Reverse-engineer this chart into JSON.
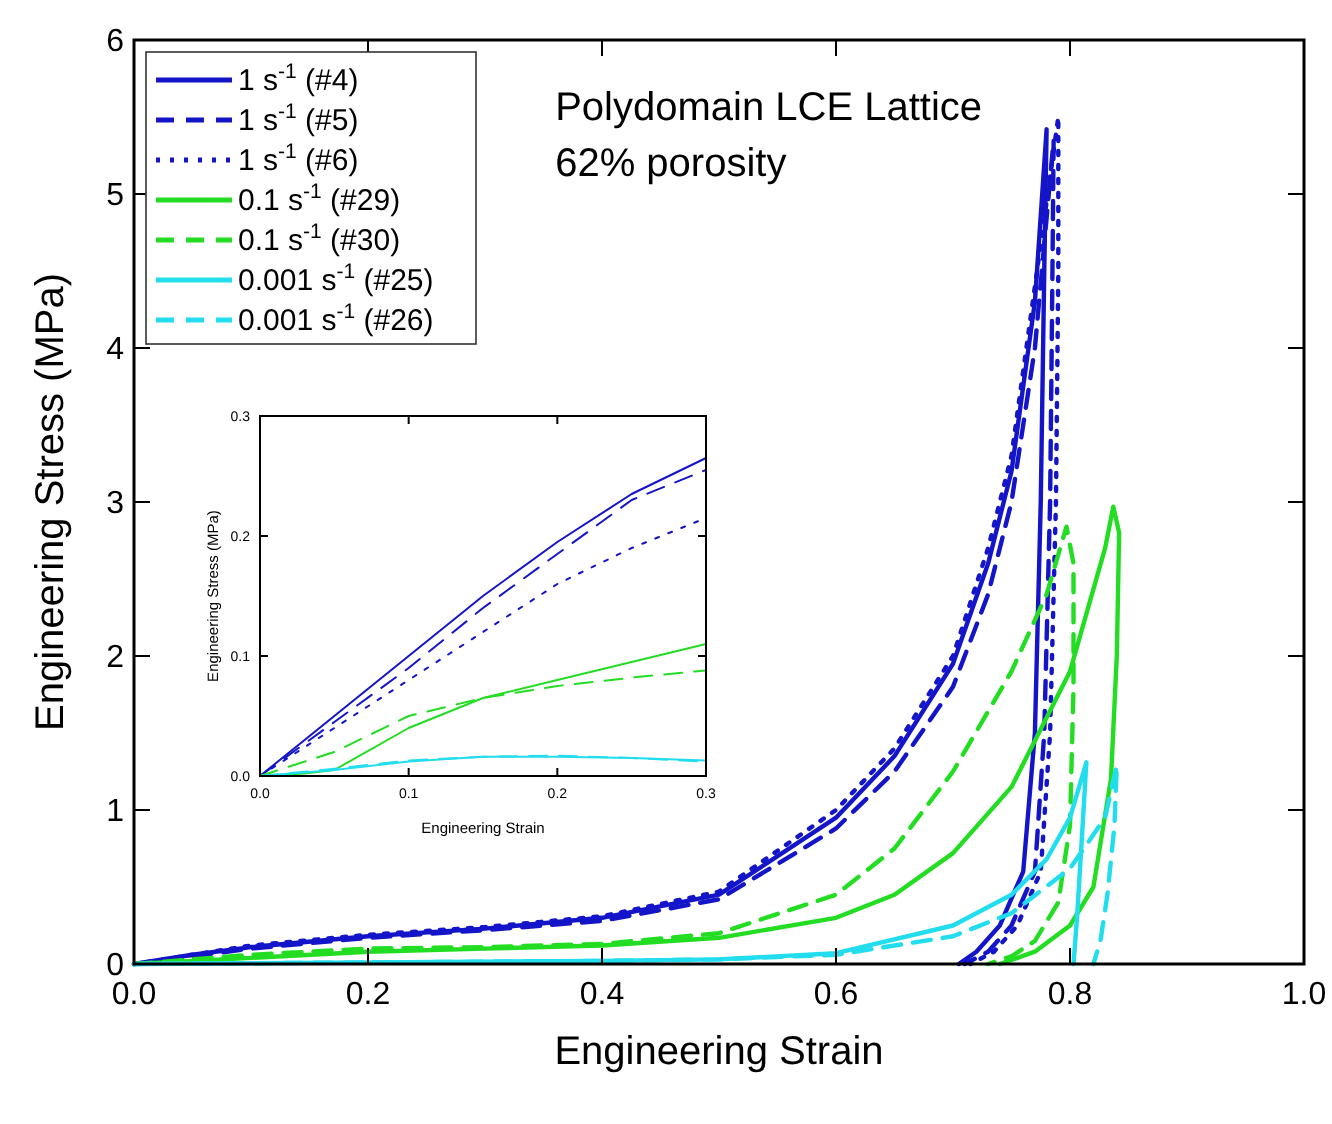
{
  "chart_data": [
    {
      "type": "line",
      "xlabel": "Engineering Strain",
      "ylabel": "Engineering Stress (MPa)",
      "xlim": [
        0,
        1
      ],
      "ylim": [
        0,
        6
      ],
      "xticks": [
        {
          "value": 0,
          "label": "0.0"
        },
        {
          "value": 0.2,
          "label": "0.2"
        },
        {
          "value": 0.4,
          "label": "0.4"
        },
        {
          "value": 0.6,
          "label": "0.6"
        },
        {
          "value": 0.8,
          "label": "0.8"
        },
        {
          "value": 1,
          "label": "1.0"
        }
      ],
      "yticks": [
        0,
        1,
        2,
        3,
        4,
        5,
        6
      ],
      "annotations": [
        "Polydomain LCE Lattice",
        "62% porosity"
      ],
      "legend": "top left",
      "series": [
        {
          "name": "1 s$^{-1}$ (#4)",
          "color": "#1414c8",
          "line_style": "solid",
          "x": [
            0,
            0.05,
            0.1,
            0.2,
            0.3,
            0.4,
            0.5,
            0.6,
            0.65,
            0.7,
            0.73,
            0.75,
            0.77,
            0.78,
            0.778,
            0.775,
            0.77,
            0.76,
            0.74,
            0.72,
            0.705
          ],
          "values": [
            0,
            0.06,
            0.11,
            0.18,
            0.23,
            0.3,
            0.45,
            0.95,
            1.35,
            1.95,
            2.6,
            3.2,
            4.3,
            5.42,
            4.5,
            3.0,
            1.5,
            0.6,
            0.25,
            0.08,
            0
          ]
        },
        {
          "name": "1 s$^{-1}$ (#5)",
          "color": "#1414c8",
          "line_style": "dashed",
          "x": [
            0,
            0.05,
            0.1,
            0.2,
            0.3,
            0.4,
            0.5,
            0.6,
            0.65,
            0.7,
            0.73,
            0.75,
            0.77,
            0.786,
            0.785,
            0.783,
            0.778,
            0.77,
            0.75,
            0.73,
            0.71
          ],
          "values": [
            0,
            0.05,
            0.1,
            0.17,
            0.22,
            0.28,
            0.42,
            0.88,
            1.25,
            1.8,
            2.4,
            3.0,
            4.0,
            5.35,
            4.5,
            3.0,
            1.5,
            0.6,
            0.25,
            0.08,
            0
          ]
        },
        {
          "name": "1 s$^{-1}$ (#6)",
          "color": "#1414c8",
          "line_style": "dotted",
          "x": [
            0,
            0.05,
            0.1,
            0.2,
            0.3,
            0.4,
            0.5,
            0.6,
            0.65,
            0.7,
            0.73,
            0.75,
            0.77,
            0.79,
            0.79,
            0.788,
            0.783,
            0.775,
            0.755,
            0.735,
            0.715
          ],
          "values": [
            0,
            0.06,
            0.12,
            0.19,
            0.24,
            0.31,
            0.47,
            1.0,
            1.4,
            2.0,
            2.7,
            3.3,
            4.4,
            5.5,
            4.5,
            3.0,
            1.5,
            0.6,
            0.25,
            0.08,
            0
          ]
        },
        {
          "name": "0.1 s$^{-1}$ (#29)",
          "color": "#22dd22",
          "line_style": "solid",
          "x": [
            0,
            0.1,
            0.2,
            0.3,
            0.4,
            0.5,
            0.6,
            0.65,
            0.7,
            0.75,
            0.8,
            0.83,
            0.837,
            0.842,
            0.84,
            0.835,
            0.82,
            0.8,
            0.77,
            0.74
          ],
          "values": [
            0,
            0.04,
            0.08,
            0.1,
            0.12,
            0.17,
            0.3,
            0.45,
            0.72,
            1.15,
            1.9,
            2.7,
            2.97,
            2.8,
            2.0,
            1.2,
            0.5,
            0.25,
            0.08,
            0
          ]
        },
        {
          "name": "0.1 s$^{-1}$ (#30)",
          "color": "#22dd22",
          "line_style": "dashed",
          "x": [
            0,
            0.1,
            0.2,
            0.3,
            0.4,
            0.5,
            0.6,
            0.65,
            0.7,
            0.75,
            0.78,
            0.797,
            0.803,
            0.803,
            0.8,
            0.79,
            0.77,
            0.75,
            0.73
          ],
          "values": [
            0,
            0.06,
            0.1,
            0.11,
            0.13,
            0.2,
            0.45,
            0.75,
            1.25,
            1.9,
            2.4,
            2.84,
            2.6,
            1.8,
            0.9,
            0.4,
            0.15,
            0.05,
            0
          ]
        },
        {
          "name": "0.001 s$^{-1}$ (#25)",
          "color": "#22dded",
          "line_style": "solid",
          "x": [
            0,
            0.2,
            0.4,
            0.5,
            0.6,
            0.7,
            0.75,
            0.78,
            0.8,
            0.814,
            0.81,
            0.806,
            0.803
          ],
          "values": [
            0,
            0.01,
            0.02,
            0.03,
            0.07,
            0.25,
            0.45,
            0.68,
            0.95,
            1.31,
            0.8,
            0.3,
            0
          ]
        },
        {
          "name": "0.001 s$^{-1}$ (#26)",
          "color": "#22dded",
          "line_style": "dashed",
          "x": [
            0,
            0.2,
            0.4,
            0.5,
            0.6,
            0.7,
            0.75,
            0.8,
            0.83,
            0.84,
            0.838,
            0.832,
            0.826,
            0.82
          ],
          "values": [
            0,
            0.01,
            0.02,
            0.03,
            0.06,
            0.18,
            0.33,
            0.62,
            0.95,
            1.29,
            0.9,
            0.45,
            0.15,
            0
          ]
        }
      ]
    },
    {
      "type": "line",
      "xlabel": "Engineering Strain",
      "ylabel": "Engineering Stress (MPa)",
      "xlim": [
        0,
        0.3
      ],
      "ylim": [
        0,
        0.3
      ],
      "xticks": [
        {
          "value": 0,
          "label": "0.0"
        },
        0.1,
        0.2,
        0.3
      ],
      "yticks": [
        {
          "value": 0,
          "label": "0.0"
        },
        0.1,
        0.2,
        0.3
      ],
      "series": [
        {
          "color": "#1414c8",
          "line_style": "solid",
          "x": [
            0,
            0.05,
            0.1,
            0.15,
            0.2,
            0.25,
            0.3
          ],
          "values": [
            0,
            0.05,
            0.1,
            0.15,
            0.195,
            0.235,
            0.265
          ]
        },
        {
          "color": "#1414c8",
          "line_style": "dashed",
          "x": [
            0,
            0.05,
            0.1,
            0.15,
            0.2,
            0.25,
            0.3
          ],
          "values": [
            0,
            0.045,
            0.09,
            0.14,
            0.185,
            0.23,
            0.255
          ]
        },
        {
          "color": "#1414c8",
          "line_style": "dotted",
          "x": [
            0,
            0.05,
            0.1,
            0.15,
            0.2,
            0.25,
            0.3
          ],
          "values": [
            0,
            0.04,
            0.08,
            0.12,
            0.16,
            0.19,
            0.215
          ]
        },
        {
          "color": "#22dd22",
          "line_style": "solid",
          "x": [
            0,
            0.03,
            0.05,
            0.1,
            0.15,
            0.2,
            0.25,
            0.3
          ],
          "values": [
            0,
            0.002,
            0.005,
            0.04,
            0.065,
            0.08,
            0.095,
            0.11
          ]
        },
        {
          "color": "#22dd22",
          "line_style": "dashed",
          "x": [
            0,
            0.05,
            0.1,
            0.15,
            0.2,
            0.25,
            0.3
          ],
          "values": [
            0,
            0.02,
            0.05,
            0.065,
            0.075,
            0.082,
            0.088
          ]
        },
        {
          "color": "#22dded",
          "line_style": "solid",
          "x": [
            0,
            0.05,
            0.1,
            0.15,
            0.2,
            0.25,
            0.3
          ],
          "values": [
            0,
            0.005,
            0.012,
            0.016,
            0.016,
            0.015,
            0.013
          ]
        },
        {
          "color": "#22dded",
          "line_style": "dashed",
          "x": [
            0,
            0.05,
            0.1,
            0.15,
            0.2,
            0.25,
            0.3
          ],
          "values": [
            0,
            0.006,
            0.013,
            0.016,
            0.017,
            0.015,
            0.012
          ]
        }
      ]
    }
  ]
}
